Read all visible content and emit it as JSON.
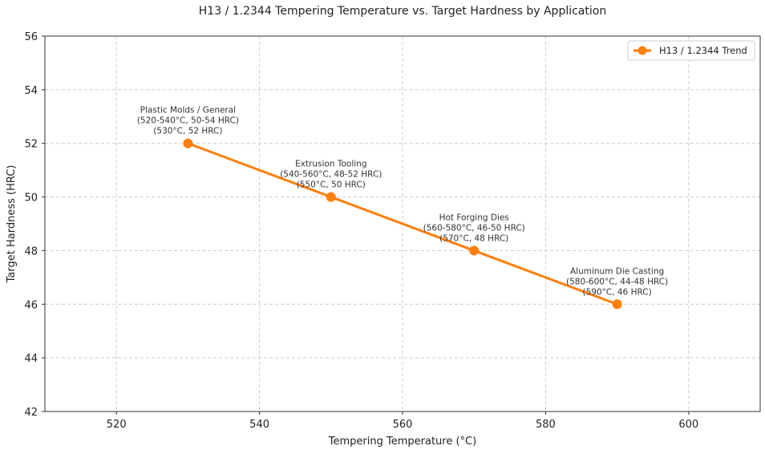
{
  "chart_data": {
    "type": "line",
    "title": "H13 / 1.2344 Tempering Temperature vs. Target Hardness by Application",
    "xlabel": "Tempering Temperature (°C)",
    "ylabel": "Target Hardness (HRC)",
    "xlim": [
      510,
      610
    ],
    "ylim": [
      42,
      56
    ],
    "xticks": [
      520,
      540,
      560,
      580,
      600
    ],
    "yticks": [
      42,
      44,
      46,
      48,
      50,
      52,
      54,
      56
    ],
    "grid": true,
    "legend_position": "top-right",
    "series": [
      {
        "name": "H13 / 1.2344 Trend",
        "color": "#ff7f0e",
        "x": [
          530,
          550,
          570,
          590
        ],
        "y": [
          52,
          50,
          48,
          46
        ]
      }
    ],
    "annotations": [
      {
        "x": 530,
        "y": 52,
        "lines": [
          "Plastic Molds / General",
          "(520-540°C, 50-54 HRC)",
          "(530°C, 52 HRC)"
        ]
      },
      {
        "x": 550,
        "y": 50,
        "lines": [
          "Extrusion Tooling",
          "(540-560°C, 48-52 HRC)",
          "(550°C, 50 HRC)"
        ]
      },
      {
        "x": 570,
        "y": 48,
        "lines": [
          "Hot Forging Dies",
          "(560-580°C, 46-50 HRC)",
          "(570°C, 48 HRC)"
        ]
      },
      {
        "x": 590,
        "y": 46,
        "lines": [
          "Aluminum Die Casting",
          "(580-600°C, 44-48 HRC)",
          "(590°C, 46 HRC)"
        ]
      }
    ]
  }
}
